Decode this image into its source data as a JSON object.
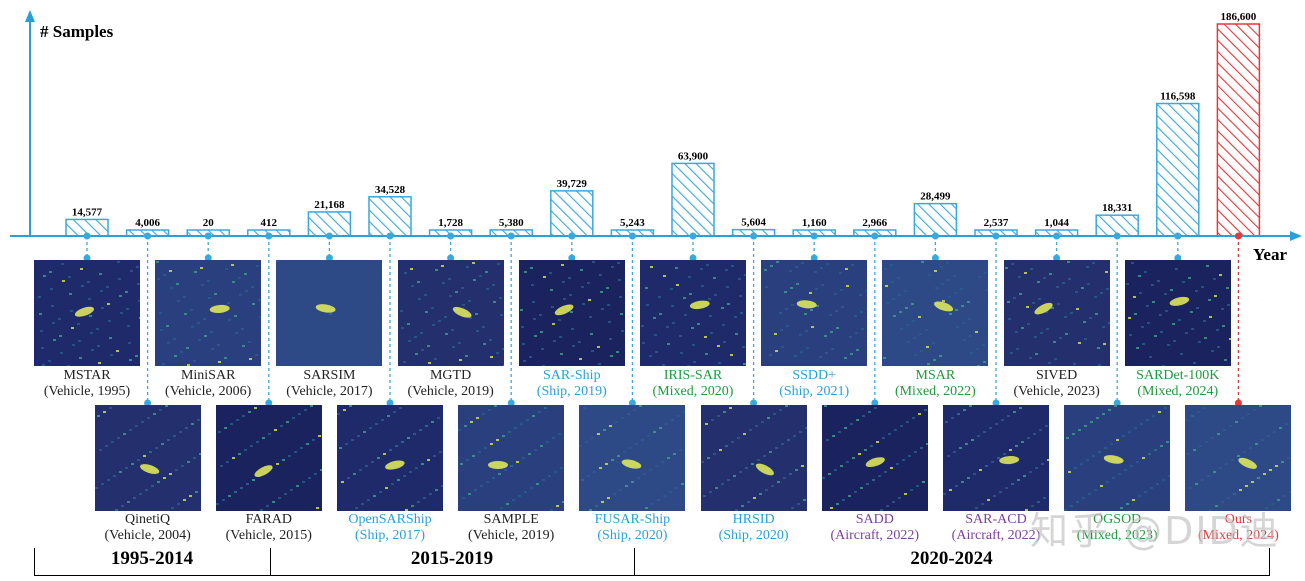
{
  "chart_data": {
    "type": "bar",
    "ylabel": "# Samples",
    "xlabel": "Year",
    "categories": [
      "MSTAR",
      "QinetiQ",
      "MiniSAR",
      "FARAD",
      "SARSIM",
      "OpenSARShip",
      "MGTD",
      "SAMPLE",
      "SAR-Ship",
      "FUSAR-Ship",
      "IRIS-SAR",
      "HRSID",
      "SSDD+",
      "SADD",
      "MSAR",
      "SAR-ACD",
      "SIVED",
      "OGSOD",
      "SARDet-100K",
      "Ours"
    ],
    "values": [
      14577,
      4006,
      20,
      412,
      21168,
      34528,
      1728,
      5380,
      39729,
      5243,
      63900,
      5604,
      1160,
      2966,
      28499,
      2537,
      1044,
      18331,
      116598,
      186600
    ],
    "value_labels": [
      "14,577",
      "4,006",
      "20",
      "412",
      "21,168",
      "34,528",
      "1,728",
      "5,380",
      "39,729",
      "5,243",
      "63,900",
      "5,604",
      "1,160",
      "2,966",
      "28,499",
      "2,537",
      "1,044",
      "18,331",
      "116,598",
      "186,600"
    ],
    "highlight_index": 19,
    "series_colors": {
      "default": "#38a9dc",
      "highlight": "#e03a3a"
    }
  },
  "datasets": [
    {
      "name": "MSTAR",
      "meta": "(Vehicle, 1995)",
      "color": "#222222"
    },
    {
      "name": "QinetiQ",
      "meta": "(Vehicle, 2004)",
      "color": "#222222"
    },
    {
      "name": "MiniSAR",
      "meta": "(Vehicle, 2006)",
      "color": "#222222"
    },
    {
      "name": "FARAD",
      "meta": "(Vehicle, 2015)",
      "color": "#222222"
    },
    {
      "name": "SARSIM",
      "meta": "(Vehicle, 2017)",
      "color": "#222222"
    },
    {
      "name": "OpenSARShip",
      "meta": "(Ship, 2017)",
      "color": "#2ba0d8"
    },
    {
      "name": "MGTD",
      "meta": "(Vehicle, 2019)",
      "color": "#222222"
    },
    {
      "name": "SAMPLE",
      "meta": "(Vehicle, 2019)",
      "color": "#222222"
    },
    {
      "name": "SAR-Ship",
      "meta": "(Ship, 2019)",
      "color": "#2ba0d8"
    },
    {
      "name": "FUSAR-Ship",
      "meta": "(Ship, 2020)",
      "color": "#2ba0d8"
    },
    {
      "name": "IRIS-SAR",
      "meta": "(Mixed, 2020)",
      "color": "#1f9a3c"
    },
    {
      "name": "HRSID",
      "meta": "(Ship, 2020)",
      "color": "#2ba0d8"
    },
    {
      "name": "SSDD+",
      "meta": "(Ship, 2021)",
      "color": "#2ba0d8"
    },
    {
      "name": "SADD",
      "meta": "(Aircraft, 2022)",
      "color": "#7d3fa0"
    },
    {
      "name": "MSAR",
      "meta": "(Mixed, 2022)",
      "color": "#1f9a3c"
    },
    {
      "name": "SAR-ACD",
      "meta": "(Aircraft, 2022)",
      "color": "#7d3fa0"
    },
    {
      "name": "SIVED",
      "meta": "(Vehicle, 2023)",
      "color": "#222222"
    },
    {
      "name": "OGSOD",
      "meta": "(Mixed, 2023)",
      "color": "#1f9a3c"
    },
    {
      "name": "SARDet-100K",
      "meta": "(Mixed, 2024)",
      "color": "#1f9a3c"
    },
    {
      "name": "Ours",
      "meta": "(Mixed, 2024)",
      "color": "#e03a3a"
    }
  ],
  "periods": [
    "1995-2014",
    "2015-2019",
    "2020-2024"
  ],
  "watermark": "知乎 @DID迪"
}
